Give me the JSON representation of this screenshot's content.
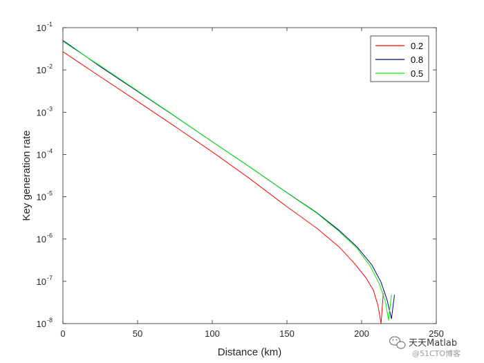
{
  "chart_data": {
    "type": "line",
    "title": "",
    "xlabel": "Distance (km)",
    "ylabel": "Key generation rate",
    "xlim": [
      0,
      250
    ],
    "ylim": [
      1e-08,
      0.1
    ],
    "yscale": "log",
    "xticks": [
      0,
      50,
      100,
      150,
      200,
      250
    ],
    "xtick_labels": [
      "0",
      "50",
      "100",
      "150",
      "200",
      "250"
    ],
    "yticks": [
      1e-08,
      1e-07,
      1e-06,
      1e-05,
      0.0001,
      0.001,
      0.01,
      0.1
    ],
    "ytick_labels": [
      {
        "base": "10",
        "exp": "-8"
      },
      {
        "base": "10",
        "exp": "-7"
      },
      {
        "base": "10",
        "exp": "-6"
      },
      {
        "base": "10",
        "exp": "-5"
      },
      {
        "base": "10",
        "exp": "-4"
      },
      {
        "base": "10",
        "exp": "-3"
      },
      {
        "base": "10",
        "exp": "-2"
      },
      {
        "base": "10",
        "exp": "-1"
      }
    ],
    "grid": false,
    "legend_position": "top-right",
    "series": [
      {
        "name": "0.2",
        "color": "#ff0000",
        "x": [
          0,
          25,
          50,
          75,
          100,
          125,
          150,
          170,
          185,
          195,
          203,
          208,
          211,
          213,
          214.5
        ],
        "y": [
          0.027,
          0.0069,
          0.0018,
          0.00046,
          0.000115,
          2.7e-05,
          5.8e-06,
          1.8e-06,
          6.5e-07,
          2.7e-07,
          1.2e-07,
          6e-08,
          2.6e-08,
          1e-08,
          5.2e-08
        ]
      },
      {
        "name": "0.8",
        "color": "#00008b",
        "x": [
          0,
          25,
          50,
          75,
          100,
          125,
          150,
          170,
          185,
          197,
          207,
          213,
          217,
          220,
          222
        ],
        "y": [
          0.05,
          0.012,
          0.0031,
          0.0008,
          0.0002,
          5.1e-05,
          1.25e-05,
          4.2e-06,
          1.6e-06,
          6.5e-07,
          2.4e-07,
          9.5e-08,
          3.7e-08,
          1.3e-08,
          4.8e-08
        ]
      },
      {
        "name": "0.5",
        "color": "#00ee00",
        "x": [
          0,
          25,
          50,
          75,
          100,
          125,
          150,
          170,
          185,
          197,
          206,
          212,
          216,
          218,
          220
        ],
        "y": [
          0.047,
          0.0125,
          0.0032,
          0.00081,
          0.0002,
          5.1e-05,
          1.24e-05,
          4.1e-06,
          1.5e-06,
          6e-07,
          2.2e-07,
          8.5e-08,
          3.2e-08,
          1.2e-08,
          4.8e-08
        ]
      }
    ]
  },
  "watermark": {
    "icon": "wechat-icon",
    "text": "天天Matlab",
    "subtext": "@51CTO博客"
  }
}
